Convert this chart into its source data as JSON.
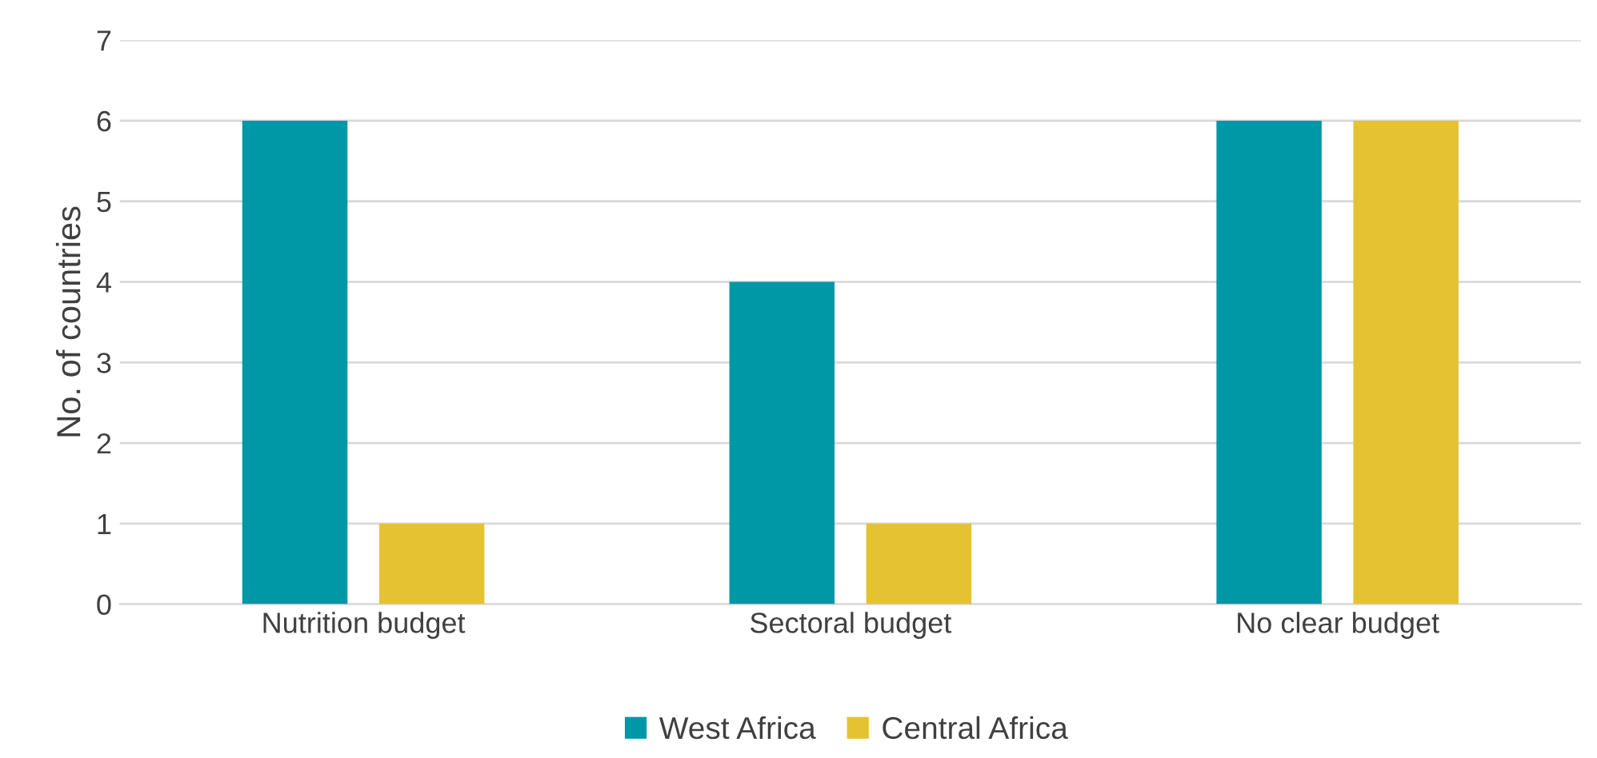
{
  "chart_data": {
    "type": "bar",
    "ylabel": "No. of countries",
    "categories": [
      "Nutrition budget",
      "Sectoral budget",
      "No clear budget"
    ],
    "series": [
      {
        "name": "West Africa",
        "color": "#0097a7",
        "values": [
          6,
          4,
          6
        ]
      },
      {
        "name": "Central Africa",
        "color": "#e5c232",
        "values": [
          1,
          1,
          6
        ]
      }
    ],
    "ylim": [
      0,
      7
    ],
    "yticks": [
      0,
      1,
      2,
      3,
      4,
      5,
      6,
      7
    ],
    "grid": "y",
    "legend": "bottom"
  }
}
